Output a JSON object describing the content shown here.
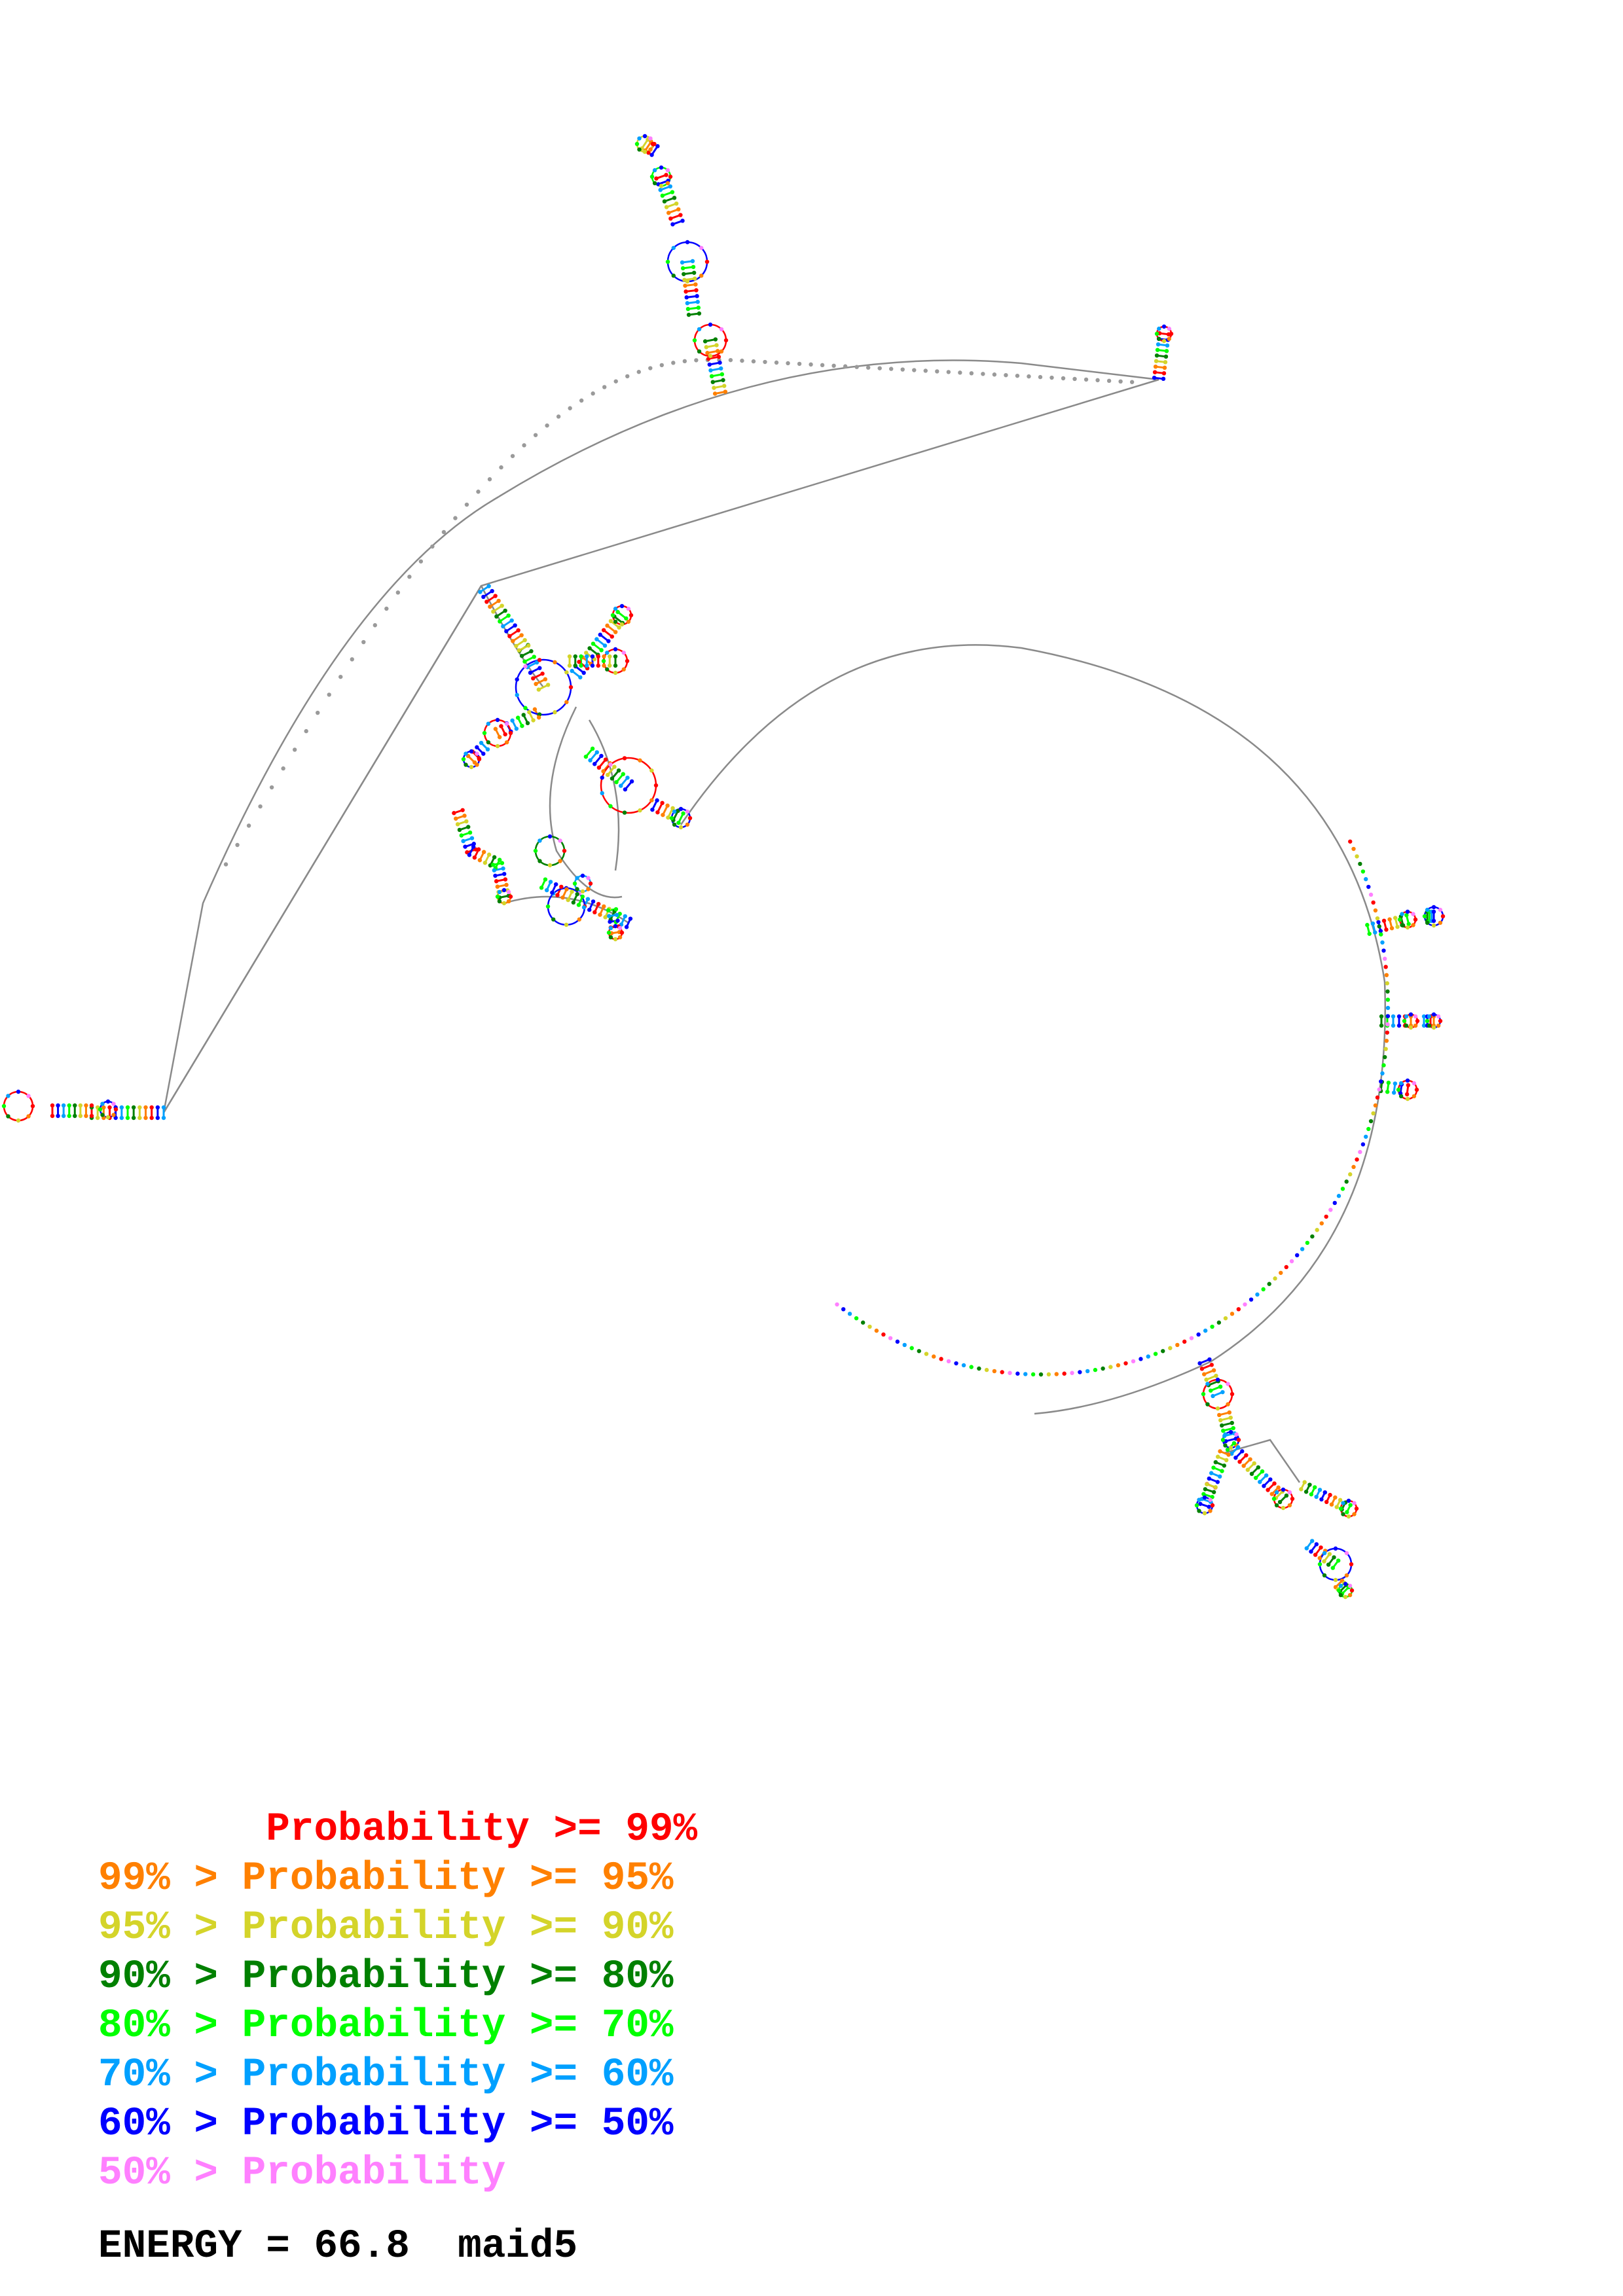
{
  "legend": [
    {
      "text": "       Probability >= 99%",
      "color": "#ff0000"
    },
    {
      "text": "99% > Probability >= 95%",
      "color": "#ff8000"
    },
    {
      "text": "95% > Probability >= 90%",
      "color": "#d4d42a"
    },
    {
      "text": "90% > Probability >= 80%",
      "color": "#008000"
    },
    {
      "text": "80% > Probability >= 70%",
      "color": "#00ff00"
    },
    {
      "text": "70% > Probability >= 60%",
      "color": "#00a0ff"
    },
    {
      "text": "60% > Probability >= 50%",
      "color": "#0000ff"
    },
    {
      "text": "50% > Probability",
      "color": "#ff80ff"
    }
  ],
  "energy_label": "ENERGY = 66.8  maid5",
  "colors": {
    "backbone": "#8a8a8a",
    "nucleotide": "#9a9a9a"
  }
}
